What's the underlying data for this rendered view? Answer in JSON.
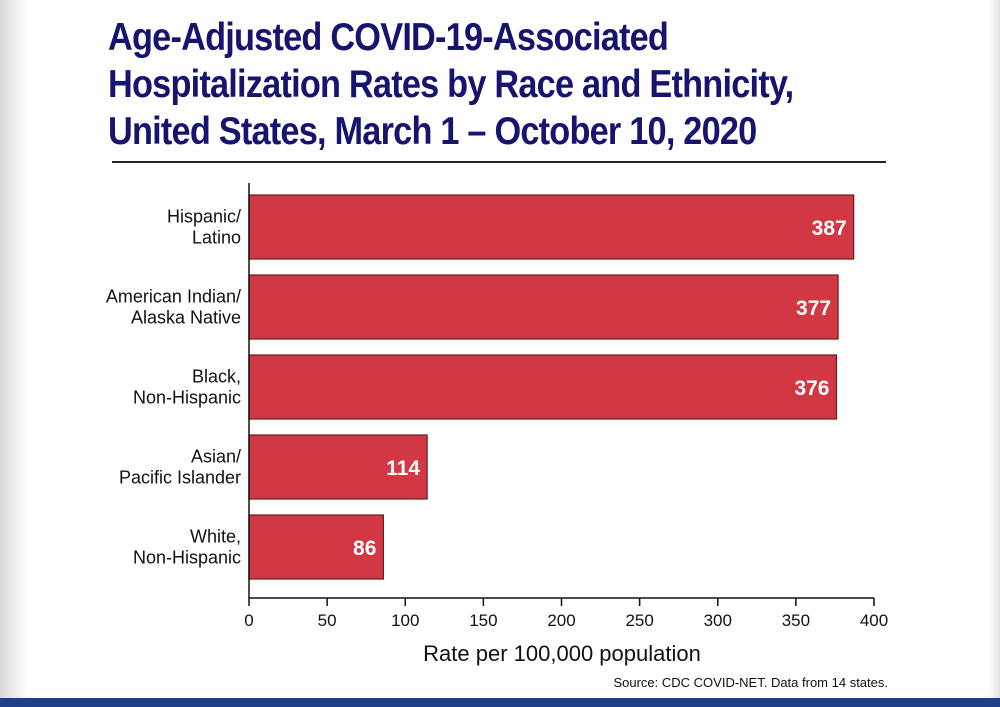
{
  "chart_data": {
    "type": "bar",
    "orientation": "horizontal",
    "title_lines": [
      "Age-Adjusted COVID-19-Associated",
      "Hospitalization Rates by Race and Ethnicity,",
      "United States, March 1 – October 10, 2020"
    ],
    "categories": [
      [
        "Hispanic/",
        "Latino"
      ],
      [
        "American Indian/",
        "Alaska Native"
      ],
      [
        "Black,",
        "Non-Hispanic"
      ],
      [
        "Asian/",
        "Pacific Islander"
      ],
      [
        "White,",
        "Non-Hispanic"
      ]
    ],
    "values": [
      387,
      377,
      376,
      114,
      86
    ],
    "data_labels": [
      "387",
      "377",
      "376",
      "114",
      "86"
    ],
    "xlabel": "Rate per 100,000 population",
    "ylabel": "",
    "xlim": [
      0,
      400
    ],
    "xticks": [
      0,
      50,
      100,
      150,
      200,
      250,
      300,
      350,
      400
    ],
    "grid": false,
    "bar_color": "#d23744",
    "source": "Source: CDC COVID-NET. Data from 14 states."
  },
  "colors": {
    "title": "#16146e",
    "bar": "#d23744",
    "bar_border": "#6b1a22",
    "band": "#1f3f8a"
  }
}
